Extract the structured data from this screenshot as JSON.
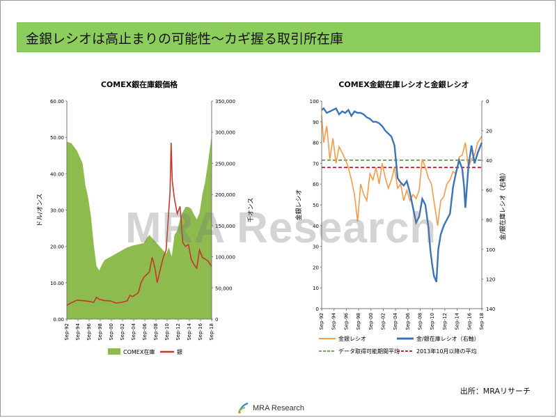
{
  "banner": {
    "title": "金銀レシオは高止まりの可能性〜カギ握る取引所在庫"
  },
  "watermark": "MRA Research",
  "source": "出所：MRAリサーチ",
  "footer": {
    "brand": "MRA Research"
  },
  "colors": {
    "banner": "#8ccd5e",
    "inventory": "#8dbb4e",
    "silver": "#c0392b",
    "ratio": "#f39a4a",
    "inv_ratio": "#3b73b9",
    "avg_all": "#4a8a2a",
    "avg_2013": "#a8141e"
  },
  "chart_data": [
    {
      "type": "area+line",
      "title": "COMEX銀在庫銀価格",
      "ylabel": "ドル/オンス",
      "y2label": "千オンス",
      "ylim": [
        0,
        60
      ],
      "y2lim": [
        0,
        350000
      ],
      "yticks": [
        "0.00",
        "10.00",
        "20.00",
        "30.00",
        "40.00",
        "50.00",
        "60.00"
      ],
      "y2ticks": [
        "0",
        "50,000",
        "100,000",
        "150,000",
        "200,000",
        "250,000",
        "300,000",
        "350,000"
      ],
      "xticks": [
        "Sep-92",
        "Sep-94",
        "Sep-96",
        "Sep-98",
        "Sep-00",
        "Sep-02",
        "Sep-04",
        "Sep-06",
        "Sep-08",
        "Sep-10",
        "Sep-12",
        "Sep-14",
        "Sep-16",
        "Sep-18"
      ],
      "x_start": 1992.67,
      "x_end": 2018.67,
      "legend": [
        "COMEX在庫",
        "銀"
      ],
      "legend_position": "bottom",
      "series": [
        {
          "name": "COMEX在庫",
          "axis": "right",
          "x": [
            1992.67,
            1993.5,
            1994.5,
            1995.5,
            1996.0,
            1996.5,
            1997.0,
            1997.5,
            1998.0,
            1998.5,
            1999.0,
            1999.5,
            2000.5,
            2001.5,
            2002.5,
            2003.5,
            2004.5,
            2005.5,
            2006.5,
            2007.0,
            2007.5,
            2008.5,
            2009.5,
            2010.0,
            2010.5,
            2011.0,
            2011.5,
            2012.0,
            2012.5,
            2013.0,
            2013.5,
            2014.0,
            2014.5,
            2015.0,
            2015.5,
            2016.0,
            2016.5,
            2017.0,
            2017.5,
            2018.0,
            2018.67
          ],
          "values": [
            285000,
            282000,
            270000,
            250000,
            215000,
            195000,
            165000,
            120000,
            85000,
            78000,
            88000,
            95000,
            100000,
            105000,
            110000,
            115000,
            118000,
            120000,
            122000,
            130000,
            135000,
            125000,
            115000,
            110000,
            105000,
            115000,
            100000,
            135000,
            142000,
            160000,
            172000,
            180000,
            180000,
            177000,
            168000,
            160000,
            170000,
            200000,
            220000,
            250000,
            295000
          ]
        },
        {
          "name": "銀",
          "axis": "left",
          "x": [
            1992.67,
            1993.5,
            1994.5,
            1995.5,
            1996.5,
            1997.5,
            1998.0,
            1998.5,
            1999.5,
            2000.5,
            2001.5,
            2002.5,
            2003.5,
            2004.0,
            2004.5,
            2005.5,
            2006.0,
            2006.5,
            2007.5,
            2008.0,
            2008.5,
            2008.9,
            2009.5,
            2010.0,
            2010.5,
            2010.9,
            2011.2,
            2011.4,
            2011.6,
            2012.0,
            2012.5,
            2013.0,
            2013.5,
            2014.0,
            2014.5,
            2015.0,
            2015.5,
            2016.0,
            2016.5,
            2017.0,
            2017.5,
            2018.0,
            2018.67
          ],
          "values": [
            3.8,
            4.5,
            5.2,
            5.1,
            4.9,
            4.6,
            6.0,
            5.4,
            5.1,
            5.0,
            4.4,
            4.6,
            5.0,
            6.5,
            6.2,
            7.2,
            10.0,
            11.5,
            13.0,
            17.0,
            14.0,
            10.0,
            14.0,
            17.0,
            19.0,
            28.0,
            35.0,
            48.5,
            38.0,
            33.0,
            29.0,
            31.0,
            21.0,
            20.0,
            20.5,
            16.5,
            15.0,
            14.0,
            19.0,
            17.0,
            16.5,
            16.0,
            14.5
          ]
        }
      ]
    },
    {
      "type": "line",
      "title": "COMEX金銀在庫レシオと金銀レシオ",
      "ylabel": "金銀レシオ",
      "y2label": "金/銀在庫レシオ（右軸）",
      "ylim": [
        0,
        100
      ],
      "y2lim": [
        140,
        0
      ],
      "y2_reversed": true,
      "yticks": [
        "0",
        "10",
        "20",
        "30",
        "40",
        "50",
        "60",
        "70",
        "80",
        "90",
        "100"
      ],
      "y2ticks": [
        "0",
        "20",
        "40",
        "60",
        "80",
        "100",
        "120",
        "140"
      ],
      "xticks": [
        "Sep-92",
        "Sep-94",
        "Sep-96",
        "Sep-98",
        "Sep-00",
        "Sep-02",
        "Sep-04",
        "Sep-06",
        "Sep-08",
        "Sep-10",
        "Sep-12",
        "Sep-14",
        "Sep-16",
        "Sep-18"
      ],
      "x_start": 1992.67,
      "x_end": 2018.67,
      "legend": [
        "金銀レシオ",
        "金/銀在庫レシオ（右軸）",
        "データ取得可能期間平均",
        "2013年10月以降の平均"
      ],
      "legend_position": "bottom",
      "series": [
        {
          "name": "金銀レシオ",
          "axis": "left",
          "x": [
            1992.67,
            1993.0,
            1993.5,
            1994.0,
            1994.5,
            1995.0,
            1995.5,
            1996.0,
            1996.5,
            1997.0,
            1997.5,
            1998.0,
            1998.5,
            1999.0,
            1999.5,
            2000.0,
            2000.5,
            2001.0,
            2001.5,
            2002.0,
            2002.5,
            2003.0,
            2003.5,
            2004.0,
            2004.5,
            2005.0,
            2005.5,
            2006.0,
            2006.5,
            2007.0,
            2007.5,
            2008.0,
            2008.5,
            2009.0,
            2009.5,
            2010.0,
            2010.5,
            2011.0,
            2011.5,
            2012.0,
            2012.5,
            2013.0,
            2013.5,
            2014.0,
            2014.5,
            2015.0,
            2015.5,
            2016.0,
            2016.5,
            2017.0,
            2017.5,
            2018.0,
            2018.67
          ],
          "values": [
            93,
            80,
            88,
            72,
            82,
            70,
            78,
            75,
            72,
            68,
            62,
            55,
            42,
            60,
            55,
            52,
            65,
            62,
            68,
            60,
            70,
            63,
            58,
            62,
            68,
            58,
            60,
            52,
            57,
            52,
            55,
            53,
            57,
            72,
            68,
            63,
            60,
            50,
            40,
            52,
            54,
            60,
            62,
            66,
            65,
            73,
            74,
            80,
            68,
            72,
            74,
            80,
            83
          ]
        },
        {
          "name": "金/銀在庫レシオ（右軸）",
          "axis": "right",
          "x": [
            1992.67,
            1993.0,
            1993.5,
            1994.0,
            1994.5,
            1995.0,
            1995.5,
            1996.0,
            1996.5,
            1997.0,
            1997.5,
            1998.0,
            1998.5,
            1999.0,
            1999.5,
            2000.0,
            2000.5,
            2001.0,
            2001.5,
            2002.0,
            2002.5,
            2003.0,
            2003.5,
            2004.0,
            2004.5,
            2005.0,
            2005.5,
            2006.0,
            2006.5,
            2007.0,
            2007.5,
            2008.0,
            2008.5,
            2009.0,
            2009.5,
            2010.0,
            2010.3,
            2010.6,
            2010.9,
            2011.3,
            2011.6,
            2012.0,
            2012.5,
            2013.0,
            2013.5,
            2014.0,
            2014.5,
            2015.0,
            2015.5,
            2015.8,
            2016.0,
            2016.5,
            2017.0,
            2017.5,
            2018.0,
            2018.67
          ],
          "values": [
            6,
            5,
            8,
            7,
            6,
            5,
            9,
            7,
            8,
            6,
            10,
            7,
            8,
            8,
            9,
            11,
            12,
            14,
            14,
            15,
            17,
            20,
            22,
            24,
            30,
            52,
            55,
            57,
            54,
            62,
            72,
            82,
            78,
            66,
            70,
            85,
            100,
            110,
            118,
            122,
            100,
            90,
            84,
            80,
            76,
            58,
            48,
            40,
            46,
            58,
            72,
            44,
            30,
            42,
            35,
            28
          ]
        },
        {
          "name": "データ取得可能期間平均",
          "axis": "left",
          "dashed": true,
          "x": [
            1992.67,
            2018.67
          ],
          "values": [
            71.5,
            71.5
          ]
        },
        {
          "name": "2013年10月以降の平均",
          "axis": "left",
          "dashed": true,
          "x": [
            1992.67,
            2018.67
          ],
          "values": [
            68,
            68
          ]
        }
      ]
    }
  ]
}
